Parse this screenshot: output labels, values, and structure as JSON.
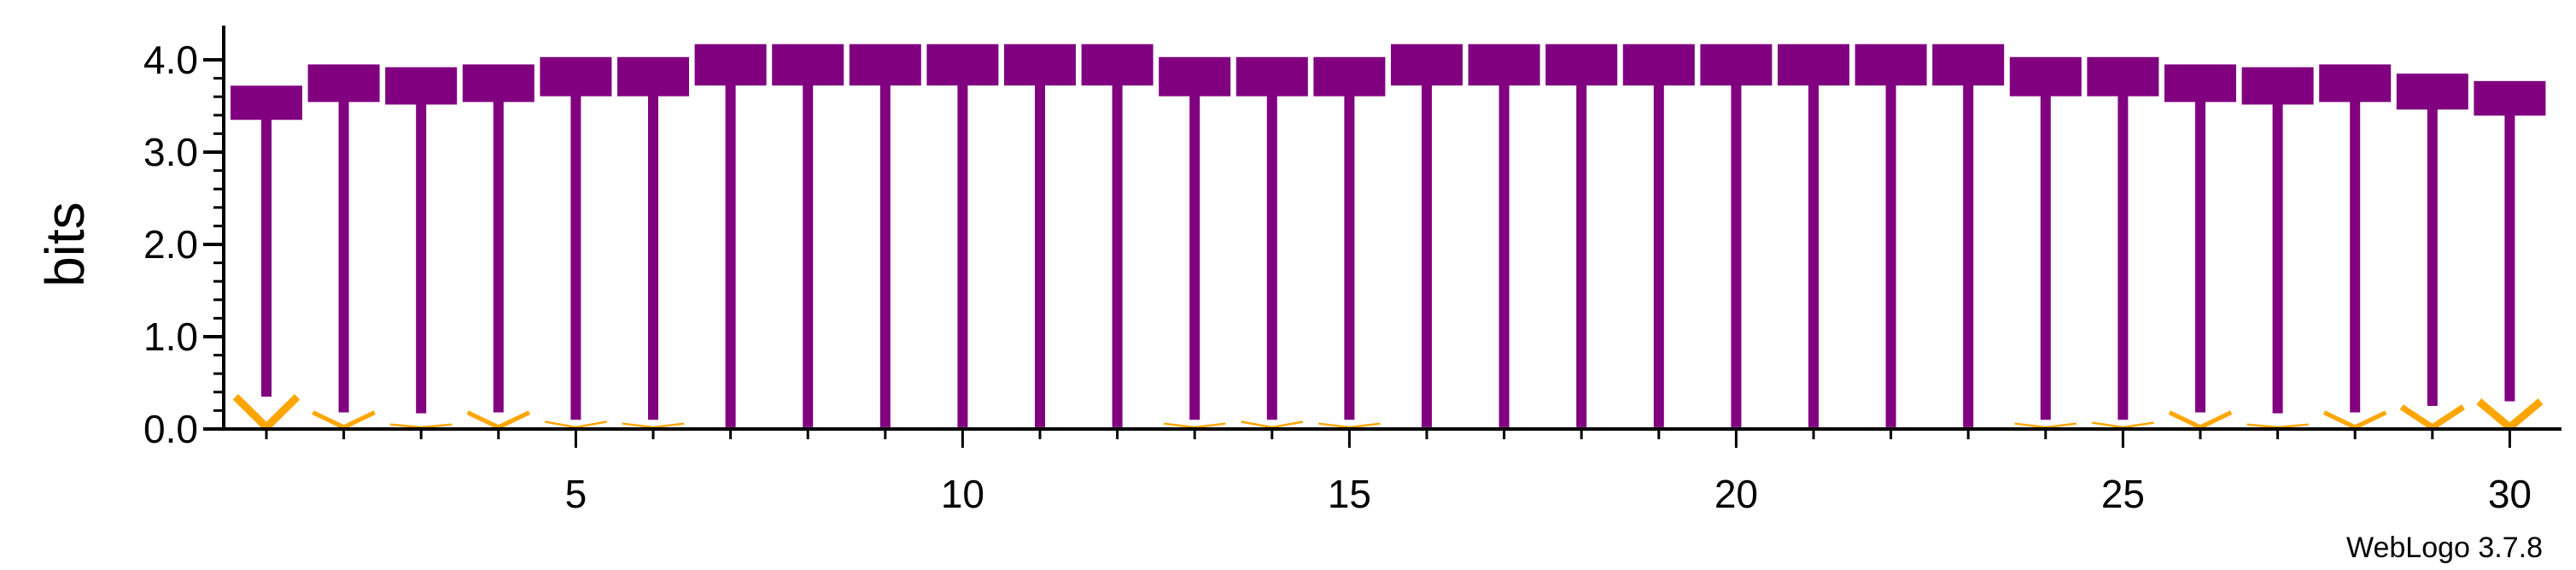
{
  "chart_data": {
    "type": "sequence-logo",
    "title": "",
    "xlabel": "",
    "ylabel": "bits",
    "ylim": [
      0,
      4.0
    ],
    "xlim": [
      1,
      30
    ],
    "yticks": [
      0.0,
      1.0,
      2.0,
      3.0,
      4.0
    ],
    "ytick_labels": [
      "0.0",
      "1.0",
      "2.0",
      "3.0",
      "4.0"
    ],
    "xticks": [
      5,
      10,
      15,
      20,
      25,
      30
    ],
    "xtick_labels": [
      "5",
      "10",
      "15",
      "20",
      "25",
      "30"
    ],
    "grid": false,
    "legend": "none",
    "credit": "WebLogo 3.7.8",
    "main_symbol": "T",
    "minor_symbol": "V",
    "colors": {
      "main": "#800080",
      "minor": "#FFA500",
      "axis": "#000000"
    },
    "positions": [
      1,
      2,
      3,
      4,
      5,
      6,
      7,
      8,
      9,
      10,
      11,
      12,
      13,
      14,
      15,
      16,
      17,
      18,
      19,
      20,
      21,
      22,
      23,
      24,
      25,
      26,
      27,
      28,
      29,
      30
    ],
    "main_top": [
      3.72,
      3.95,
      3.92,
      3.95,
      4.03,
      4.03,
      4.17,
      4.17,
      4.17,
      4.17,
      4.17,
      4.17,
      4.03,
      4.03,
      4.03,
      4.17,
      4.17,
      4.17,
      4.17,
      4.17,
      4.17,
      4.17,
      4.17,
      4.03,
      4.03,
      3.95,
      3.92,
      3.95,
      3.85,
      3.77
    ],
    "main_bottom": [
      0.35,
      0.18,
      0.17,
      0.18,
      0.1,
      0.1,
      0.02,
      0.02,
      0.02,
      0.02,
      0.02,
      0.02,
      0.1,
      0.1,
      0.1,
      0.02,
      0.02,
      0.02,
      0.02,
      0.02,
      0.02,
      0.02,
      0.02,
      0.1,
      0.1,
      0.18,
      0.17,
      0.18,
      0.25,
      0.3
    ],
    "minor_height": [
      0.33,
      0.16,
      0.03,
      0.16,
      0.06,
      0.04,
      0.0,
      0.0,
      0.0,
      0.0,
      0.0,
      0.0,
      0.04,
      0.06,
      0.04,
      0.0,
      0.0,
      0.0,
      0.0,
      0.0,
      0.0,
      0.0,
      0.0,
      0.04,
      0.05,
      0.16,
      0.03,
      0.16,
      0.22,
      0.28
    ]
  }
}
